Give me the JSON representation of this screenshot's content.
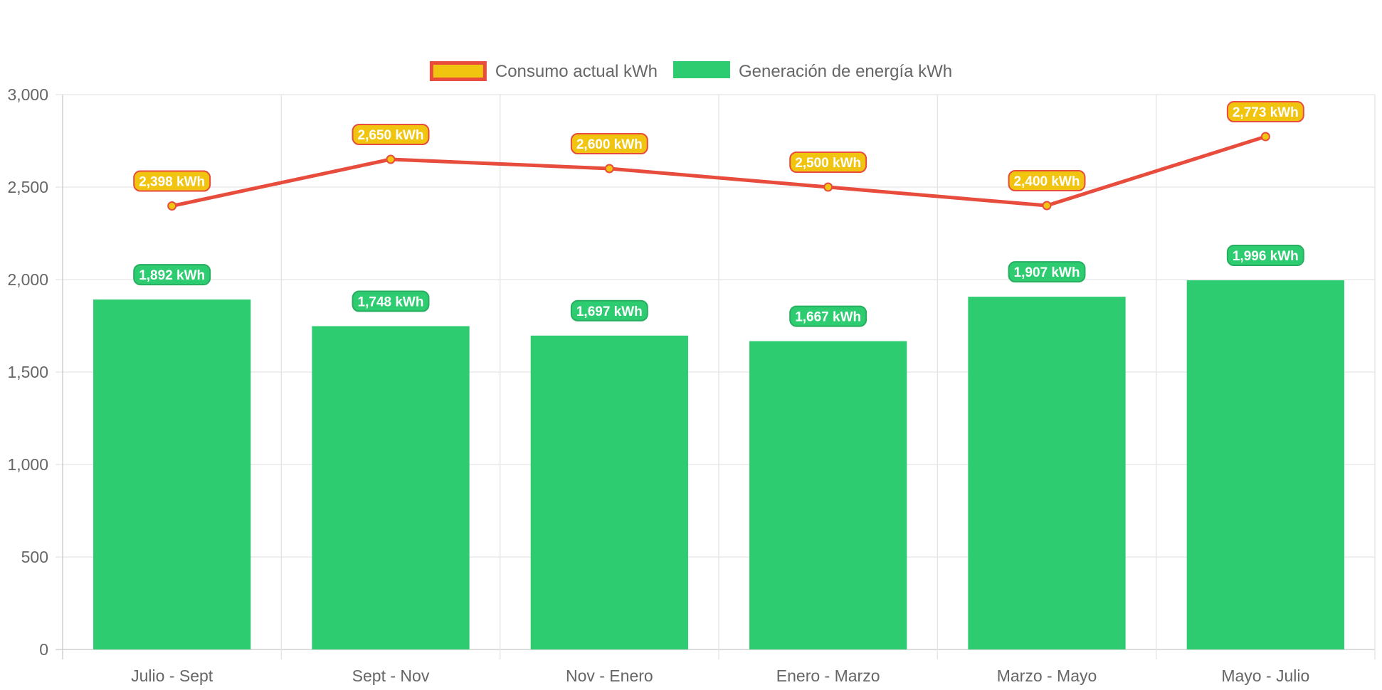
{
  "chart_data": {
    "type": "bar",
    "categories": [
      "Julio - Sept",
      "Sept - Nov",
      "Nov - Enero",
      "Enero - Marzo",
      "Marzo - Mayo",
      "Mayo - Julio"
    ],
    "series": [
      {
        "name": "Consumo actual kWh",
        "type": "line",
        "values": [
          2398,
          2650,
          2600,
          2500,
          2400,
          2773
        ],
        "labels": [
          "2,398 kWh",
          "2,650 kWh",
          "2,600 kWh",
          "2,500 kWh",
          "2,400 kWh",
          "2,773 kWh"
        ],
        "line_color": "#e74c3c",
        "fill_color": "#f1c40f"
      },
      {
        "name": "Generación de energía kWh",
        "type": "bar",
        "values": [
          1892,
          1748,
          1697,
          1667,
          1907,
          1996
        ],
        "labels": [
          "1,892 kWh",
          "1,748 kWh",
          "1,697 kWh",
          "1,667 kWh",
          "1,907 kWh",
          "1,996 kWh"
        ],
        "color": "#2ecc71",
        "label_border": "#27ae60"
      }
    ],
    "ylim": [
      0,
      3000
    ],
    "yticks": [
      0,
      500,
      1000,
      1500,
      2000,
      2500,
      3000
    ],
    "ytick_labels": [
      "0",
      "500",
      "1,000",
      "1,500",
      "2,000",
      "2,500",
      "3,000"
    ],
    "title": "",
    "xlabel": "",
    "ylabel": "",
    "legend_position": "top-center",
    "grid": true,
    "grid_color": "#e5e5e5",
    "axis_color": "#c8c8c8"
  }
}
